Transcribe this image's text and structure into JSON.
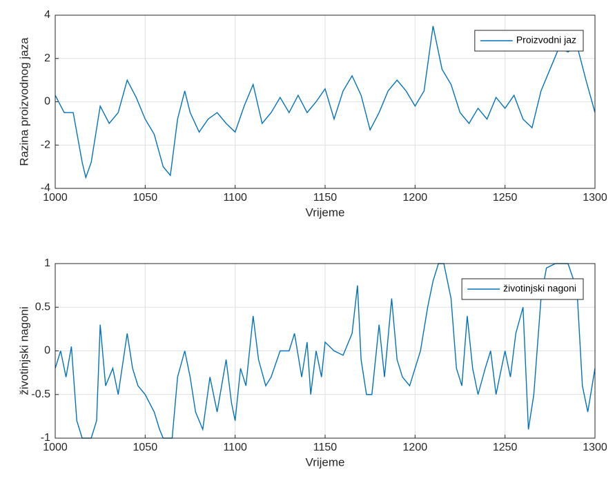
{
  "chart_data": [
    {
      "type": "line",
      "xlabel": "Vrijeme",
      "ylabel": "Razina proizvodnog jaza",
      "x": [
        1000,
        1005,
        1010,
        1015,
        1017,
        1020,
        1025,
        1030,
        1035,
        1040,
        1045,
        1050,
        1055,
        1060,
        1064,
        1068,
        1072,
        1075,
        1080,
        1085,
        1090,
        1095,
        1100,
        1105,
        1110,
        1115,
        1120,
        1125,
        1130,
        1135,
        1140,
        1145,
        1150,
        1155,
        1160,
        1165,
        1170,
        1175,
        1180,
        1185,
        1190,
        1195,
        1200,
        1205,
        1210,
        1215,
        1220,
        1225,
        1230,
        1235,
        1240,
        1245,
        1250,
        1255,
        1260,
        1265,
        1270,
        1275,
        1280,
        1285,
        1290,
        1295,
        1300
      ],
      "series": [
        {
          "name": "Proizvodni jaz",
          "color": "#0072bd",
          "values": [
            0.3,
            -0.5,
            -0.5,
            -2.8,
            -3.5,
            -2.8,
            -0.2,
            -1.0,
            -0.5,
            1.0,
            0.2,
            -0.8,
            -1.5,
            -3.0,
            -3.4,
            -0.8,
            0.5,
            -0.5,
            -1.4,
            -0.8,
            -0.5,
            -1.0,
            -1.4,
            -0.2,
            0.8,
            -1.0,
            -0.5,
            0.2,
            -0.5,
            0.3,
            -0.5,
            0.0,
            0.6,
            -0.8,
            0.5,
            1.2,
            0.3,
            -1.3,
            -0.5,
            0.5,
            1.0,
            0.5,
            -0.2,
            0.5,
            3.5,
            1.5,
            0.8,
            -0.5,
            -1.0,
            -0.3,
            -0.8,
            0.2,
            -0.3,
            0.3,
            -0.8,
            -1.2,
            0.5,
            1.5,
            2.5,
            2.3,
            2.6,
            1.0,
            -0.5
          ]
        }
      ],
      "xlim": [
        1000,
        1300
      ],
      "ylim": [
        -4,
        4
      ],
      "xticks": [
        1000,
        1050,
        1100,
        1150,
        1200,
        1250,
        1300
      ],
      "yticks": [
        -4,
        -2,
        0,
        2,
        4
      ],
      "grid": true,
      "legend": "upper right"
    },
    {
      "type": "line",
      "xlabel": "Vrijeme",
      "ylabel": "životinjski nagoni",
      "x": [
        1000,
        1003,
        1006,
        1009,
        1012,
        1015,
        1020,
        1023,
        1025,
        1028,
        1032,
        1035,
        1040,
        1043,
        1046,
        1050,
        1055,
        1058,
        1060,
        1065,
        1068,
        1072,
        1075,
        1078,
        1082,
        1086,
        1090,
        1095,
        1098,
        1100,
        1103,
        1106,
        1110,
        1113,
        1117,
        1120,
        1125,
        1130,
        1133,
        1137,
        1140,
        1142,
        1145,
        1148,
        1150,
        1155,
        1160,
        1165,
        1168,
        1170,
        1173,
        1176,
        1180,
        1183,
        1187,
        1190,
        1193,
        1197,
        1200,
        1203,
        1207,
        1210,
        1213,
        1216,
        1220,
        1223,
        1226,
        1229,
        1232,
        1235,
        1239,
        1242,
        1245,
        1250,
        1253,
        1256,
        1260,
        1263,
        1266,
        1270,
        1273,
        1278,
        1285,
        1290,
        1293,
        1296,
        1300
      ],
      "series": [
        {
          "name": "životinjski nagoni",
          "color": "#0072bd",
          "values": [
            -0.2,
            0.0,
            -0.3,
            0.05,
            -0.8,
            -1.0,
            -1.0,
            -0.8,
            0.3,
            -0.4,
            -0.2,
            -0.5,
            0.2,
            -0.2,
            -0.4,
            -0.5,
            -0.7,
            -0.9,
            -1.0,
            -1.0,
            -0.3,
            0.0,
            -0.3,
            -0.7,
            -0.9,
            -0.3,
            -0.7,
            -0.1,
            -0.6,
            -0.8,
            -0.2,
            -0.4,
            0.4,
            -0.1,
            -0.4,
            -0.3,
            0.0,
            0.0,
            0.2,
            -0.3,
            0.1,
            -0.5,
            0.0,
            -0.3,
            0.1,
            0.0,
            -0.05,
            0.2,
            0.75,
            -0.1,
            -0.5,
            -0.5,
            0.3,
            -0.3,
            0.6,
            -0.1,
            -0.3,
            -0.4,
            -0.2,
            0.0,
            0.5,
            0.8,
            1.0,
            1.0,
            0.6,
            -0.2,
            -0.4,
            0.4,
            -0.2,
            -0.5,
            -0.2,
            0.0,
            -0.5,
            0.0,
            -0.3,
            0.2,
            0.5,
            -0.9,
            -0.5,
            0.6,
            0.95,
            1.0,
            1.0,
            0.7,
            -0.4,
            -0.7,
            -0.2
          ]
        }
      ],
      "xlim": [
        1000,
        1300
      ],
      "ylim": [
        -1,
        1
      ],
      "xticks": [
        1000,
        1050,
        1100,
        1150,
        1200,
        1250,
        1300
      ],
      "yticks": [
        -1,
        -0.5,
        0,
        0.5,
        1
      ],
      "grid": true,
      "legend": "upper right"
    }
  ]
}
